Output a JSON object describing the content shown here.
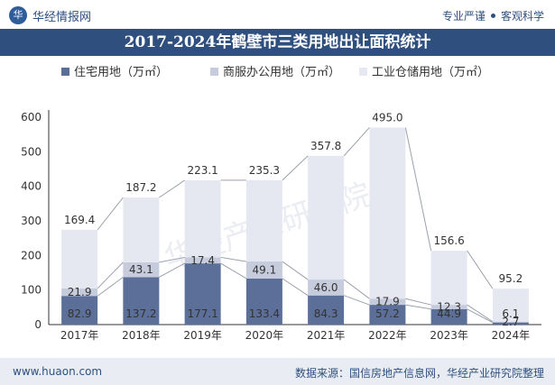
{
  "header": {
    "brand": "华经情报网",
    "tagline_left": "专业严谨",
    "tagline_right": "客观科学"
  },
  "footer": {
    "website": "www.huaon.com",
    "source": "数据来源：国信房地产信息网，华经产业研究院整理"
  },
  "watermark": "华经产业研究院",
  "chart_data": {
    "type": "bar",
    "stacked": true,
    "title": "2017-2024年鹤壁市三类用地出让面积统计",
    "categories": [
      "2017年",
      "2018年",
      "2019年",
      "2020年",
      "2021年",
      "2022年",
      "2023年",
      "2024年"
    ],
    "series": [
      {
        "name": "住宅用地（万㎡）",
        "values": [
          82.9,
          137.2,
          177.1,
          133.4,
          84.3,
          57.2,
          44.9,
          6.1
        ],
        "color": "#5b6f98"
      },
      {
        "name": "商服办公用地（万㎡）",
        "values": [
          21.9,
          43.1,
          17.4,
          49.1,
          46.0,
          17.9,
          12.3,
          2.7
        ],
        "color": "#c6ccdc"
      },
      {
        "name": "工业仓储用地（万㎡）",
        "values": [
          169.4,
          187.2,
          223.1,
          235.3,
          357.8,
          495.0,
          156.6,
          95.2
        ],
        "color": "#e6e8f1"
      }
    ],
    "ylim": [
      0,
      600
    ],
    "yticks": [
      0,
      100,
      200,
      300,
      400,
      500,
      600
    ],
    "legend_position": "top",
    "grid": false
  }
}
